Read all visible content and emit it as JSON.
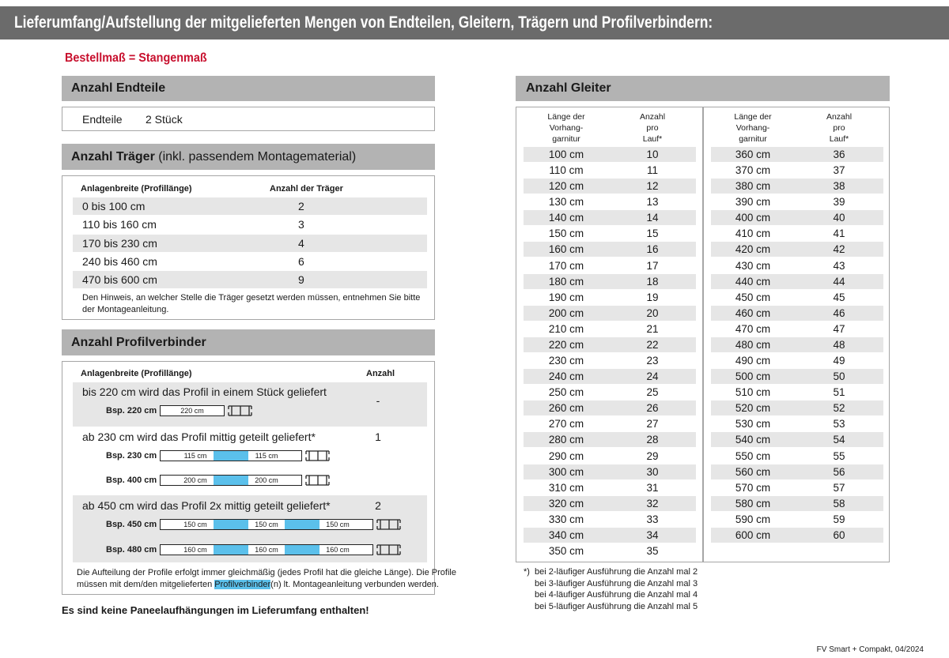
{
  "header": {
    "title": "Lieferumfang/Aufstellung der mitgelieferten Mengen von Endteilen, Gleitern, Trägern und Profilverbindern:",
    "subtitle": "Bestellmaß = Stangenmaß"
  },
  "endteile": {
    "heading": "Anzahl Endteile",
    "label": "Endteile",
    "value": "2 Stück"
  },
  "traeger": {
    "heading": "Anzahl Träger",
    "heading_note": "(inkl. passendem Montagematerial)",
    "columns": [
      "Anlagenbreite (Profillänge)",
      "Anzahl der Träger"
    ],
    "rows": [
      [
        "0 bis 100 cm",
        "2"
      ],
      [
        "110 bis 160 cm",
        "3"
      ],
      [
        "170 bis 230 cm",
        "4"
      ],
      [
        "240 bis 460 cm",
        "6"
      ],
      [
        "470 bis 600 cm",
        "9"
      ]
    ],
    "note_lines": [
      "Den Hinweis, an welcher Stelle die Träger gesetzt werden müssen, entnehmen Sie bitte",
      "der Montageanleitung."
    ]
  },
  "profilverbinder": {
    "heading": "Anzahl Profilverbinder",
    "columns": [
      "Anlagenbreite (Profillänge)",
      "Anzahl"
    ],
    "groups": [
      {
        "text": "bis 220 cm wird das Profil in einem Stück geliefert",
        "count": "-",
        "examples": [
          {
            "label": "Bsp. 220 cm",
            "segments": [
              "220 cm"
            ]
          }
        ]
      },
      {
        "text": "ab 230 cm wird das Profil mittig geteilt geliefert*",
        "count": "1",
        "examples": [
          {
            "label": "Bsp. 230 cm",
            "segments": [
              "115 cm",
              "115 cm"
            ]
          },
          {
            "label": "Bsp. 400 cm",
            "segments": [
              "200 cm",
              "200 cm"
            ]
          }
        ]
      },
      {
        "text": "ab 450 cm wird das Profil 2x mittig geteilt geliefert*",
        "count": "2",
        "examples": [
          {
            "label": "Bsp. 450 cm",
            "segments": [
              "150 cm",
              "150 cm",
              "150 cm"
            ]
          },
          {
            "label": "Bsp. 480 cm",
            "segments": [
              "160 cm",
              "160 cm",
              "160 cm"
            ]
          }
        ]
      }
    ],
    "note_line1": "Die Aufteilung der Profile erfolgt immer gleichmäßig (jedes Profil hat die gleiche Länge). Die Profile",
    "note_line2": [
      "müssen mit dem/den mitgelieferten ",
      "Profilverbinder",
      "(n) lt. Montageanleitung verbunden werden."
    ]
  },
  "footer_note": "Es sind keine Paneelaufhängungen im Lieferumfang enthalten!",
  "gleiter": {
    "heading": "Anzahl Gleiter",
    "columns": [
      [
        "Länge der",
        "Vorhang-",
        "garnitur"
      ],
      [
        "Anzahl",
        "pro",
        "Lauf*"
      ]
    ],
    "tables": [
      [
        [
          "100 cm",
          "10"
        ],
        [
          "110 cm",
          "11"
        ],
        [
          "120 cm",
          "12"
        ],
        [
          "130 cm",
          "13"
        ],
        [
          "140 cm",
          "14"
        ],
        [
          "150 cm",
          "15"
        ],
        [
          "160 cm",
          "16"
        ],
        [
          "170 cm",
          "17"
        ],
        [
          "180 cm",
          "18"
        ],
        [
          "190 cm",
          "19"
        ],
        [
          "200 cm",
          "20"
        ],
        [
          "210 cm",
          "21"
        ],
        [
          "220 cm",
          "22"
        ],
        [
          "230 cm",
          "23"
        ],
        [
          "240 cm",
          "24"
        ],
        [
          "250 cm",
          "25"
        ],
        [
          "260 cm",
          "26"
        ],
        [
          "270 cm",
          "27"
        ],
        [
          "280 cm",
          "28"
        ],
        [
          "290 cm",
          "29"
        ],
        [
          "300 cm",
          "30"
        ],
        [
          "310 cm",
          "31"
        ],
        [
          "320 cm",
          "32"
        ],
        [
          "330 cm",
          "33"
        ],
        [
          "340 cm",
          "34"
        ],
        [
          "350 cm",
          "35"
        ]
      ],
      [
        [
          "360 cm",
          "36"
        ],
        [
          "370 cm",
          "37"
        ],
        [
          "380 cm",
          "38"
        ],
        [
          "390 cm",
          "39"
        ],
        [
          "400 cm",
          "40"
        ],
        [
          "410 cm",
          "41"
        ],
        [
          "420 cm",
          "42"
        ],
        [
          "430 cm",
          "43"
        ],
        [
          "440 cm",
          "44"
        ],
        [
          "450 cm",
          "45"
        ],
        [
          "460 cm",
          "46"
        ],
        [
          "470 cm",
          "47"
        ],
        [
          "480 cm",
          "48"
        ],
        [
          "490 cm",
          "49"
        ],
        [
          "500 cm",
          "50"
        ],
        [
          "510 cm",
          "51"
        ],
        [
          "520 cm",
          "52"
        ],
        [
          "530 cm",
          "53"
        ],
        [
          "540 cm",
          "54"
        ],
        [
          "550 cm",
          "55"
        ],
        [
          "560 cm",
          "56"
        ],
        [
          "570 cm",
          "57"
        ],
        [
          "580 cm",
          "58"
        ],
        [
          "590 cm",
          "59"
        ],
        [
          "600 cm",
          "60"
        ]
      ]
    ],
    "footnote_marker": "*)",
    "footnote_lines": [
      "bei 2-läufiger Ausführung die Anzahl mal 2",
      "bei 3-läufiger Ausführung die Anzahl mal 3",
      "bei 4-läufiger Ausführung die Anzahl mal 4",
      "bei 5-läufiger Ausführung die Anzahl mal 5"
    ]
  },
  "footer": "FV Smart + Compakt, 04/2024"
}
